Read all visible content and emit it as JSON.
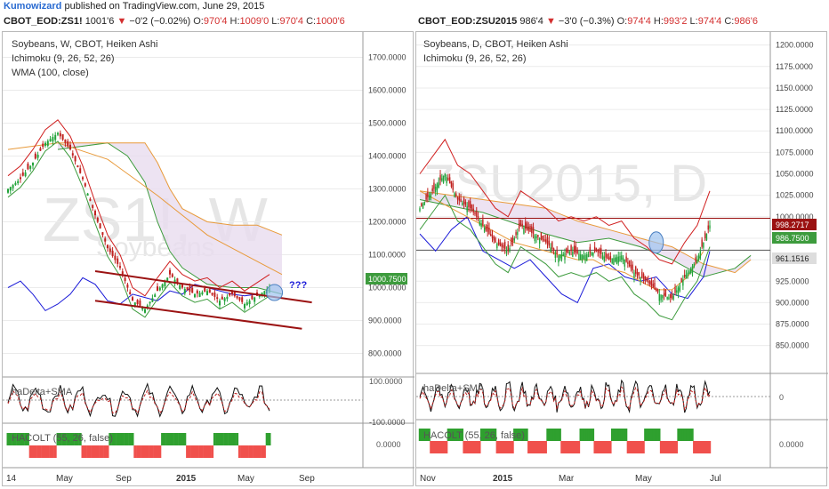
{
  "header": {
    "author": "Kumowizard",
    "published_text": "published on TradingView.com, June 29, 2015"
  },
  "colors": {
    "bull": "#22a33a",
    "bear": "#c0211f",
    "kumo_fill": "#e9dcef",
    "tenkan": "#d01f1f",
    "kijun": "#1a1ad8",
    "span_a": "#3d9b3d",
    "span_b": "#e89a3a",
    "wma": "#e89a3a",
    "trend": "#9b1212",
    "grid": "#ebebeb",
    "hist_green": "#2fa02f",
    "hist_red": "#f0504c"
  },
  "charts": [
    {
      "quote": {
        "symbol": "CBOT_EOD:ZS1!",
        "last": "1001'6",
        "change": "−0'2 (−0.02%)",
        "o_label": "O:",
        "o": "970'4",
        "h_label": "H:",
        "h": "1009'0",
        "l_label": "L:",
        "l": "970'4",
        "c_label": "C:",
        "c": "1000'6"
      },
      "legend": [
        "Soybeans, W, CBOT, Heiken Ashi",
        "Ichimoku (9, 26, 52, 26)",
        "WMA (100, close)"
      ],
      "watermark": "ZS1!, W",
      "watermark_sub": "Soybeans",
      "annotation": "???",
      "price_box": "1000.7500",
      "osc_label": "haDelta+SMA",
      "hist_label": "HACOLT (55, 26, false)",
      "osc_ticks": [
        "100.0000",
        "-100.0000"
      ],
      "hist_tick": "0.0000",
      "x_labels": [
        "14",
        "May",
        "Sep",
        "2015",
        "May",
        "Sep"
      ]
    },
    {
      "quote": {
        "symbol": "CBOT_EOD:ZSU2015",
        "last": "986'4",
        "change": "−3'0 (−0.3%)",
        "o_label": "O:",
        "o": "974'4",
        "h_label": "H:",
        "h": "993'2",
        "l_label": "L:",
        "l": "974'4",
        "c_label": "C:",
        "c": "986'6"
      },
      "legend": [
        "Soybeans, D, CBOT, Heiken Ashi",
        "Ichimoku (9, 26, 52, 26)"
      ],
      "watermark": "ZSU2015, D",
      "price_boxes": [
        "998.2717",
        "986.7500",
        "961.1516"
      ],
      "osc_label": "haDelta+SMA",
      "hist_label": "HACOLT (55, 26, false)",
      "osc_tick": "0",
      "hist_tick": "0.0000",
      "x_labels": [
        "Nov",
        "2015",
        "Mar",
        "May",
        "Jul"
      ]
    }
  ],
  "chart_data": [
    {
      "type": "candlestick",
      "title": "Soybeans, W, CBOT, Heiken Ashi",
      "ylim": [
        750,
        1750
      ],
      "y_ticks": [
        800,
        900,
        1000,
        1100,
        1200,
        1300,
        1400,
        1500,
        1600,
        1700
      ],
      "x_ticks": [
        "14",
        "May",
        "Sep",
        "2015",
        "May",
        "Sep"
      ],
      "close_path": [
        [
          0,
          1300
        ],
        [
          5,
          1330
        ],
        [
          10,
          1380
        ],
        [
          15,
          1440
        ],
        [
          20,
          1470
        ],
        [
          25,
          1420
        ],
        [
          30,
          1330
        ],
        [
          35,
          1220
        ],
        [
          40,
          1120
        ],
        [
          45,
          1060
        ],
        [
          50,
          960
        ],
        [
          55,
          935
        ],
        [
          60,
          990
        ],
        [
          65,
          1040
        ],
        [
          70,
          1000
        ],
        [
          75,
          980
        ],
        [
          80,
          990
        ],
        [
          85,
          960
        ],
        [
          90,
          980
        ],
        [
          95,
          950
        ],
        [
          100,
          975
        ],
        [
          105,
          1000
        ]
      ],
      "kijun_path": [
        [
          0,
          1000
        ],
        [
          5,
          1020
        ],
        [
          10,
          980
        ],
        [
          15,
          930
        ],
        [
          20,
          950
        ],
        [
          25,
          980
        ],
        [
          30,
          1030
        ],
        [
          35,
          1010
        ],
        [
          40,
          960
        ],
        [
          45,
          950
        ],
        [
          50,
          980
        ],
        [
          55,
          970
        ],
        [
          60,
          960
        ],
        [
          65,
          990
        ],
        [
          70,
          980
        ],
        [
          75,
          1010
        ],
        [
          80,
          1000
        ],
        [
          85,
          990
        ],
        [
          90,
          980
        ],
        [
          95,
          975
        ],
        [
          100,
          980
        ]
      ],
      "wma_path": [
        [
          0,
          1420
        ],
        [
          20,
          1440
        ],
        [
          40,
          1390
        ],
        [
          60,
          1280
        ],
        [
          80,
          1160
        ],
        [
          100,
          1080
        ],
        [
          110,
          1040
        ]
      ],
      "span_b_path": [
        [
          20,
          1440
        ],
        [
          50,
          1440
        ],
        [
          55,
          1440
        ],
        [
          60,
          1380
        ],
        [
          65,
          1300
        ],
        [
          70,
          1240
        ],
        [
          80,
          1200
        ],
        [
          90,
          1190
        ],
        [
          100,
          1190
        ],
        [
          110,
          1160
        ]
      ],
      "span_a_path": [
        [
          20,
          1420
        ],
        [
          40,
          1440
        ],
        [
          48,
          1400
        ],
        [
          55,
          1320
        ],
        [
          60,
          1200
        ],
        [
          65,
          1110
        ],
        [
          70,
          1060
        ],
        [
          80,
          1010
        ],
        [
          90,
          1000
        ],
        [
          100,
          1000
        ],
        [
          110,
          980
        ]
      ],
      "channel_upper": [
        [
          35,
          1050
        ],
        [
          52,
          985
        ]
      ],
      "channel_lower": [
        [
          35,
          960
        ],
        [
          80,
          880
        ]
      ],
      "last_price": 1000.75
    },
    {
      "type": "candlestick",
      "title": "Soybeans, D, CBOT, Heiken Ashi",
      "ylim": [
        830,
        1210
      ],
      "y_ticks": [
        850,
        875,
        900,
        925,
        950,
        975,
        1000,
        1025,
        1050,
        1075,
        1100,
        1125,
        1150,
        1175,
        1200
      ],
      "x_ticks": [
        "Nov",
        "2015",
        "Mar",
        "May",
        "Jul"
      ],
      "close_path": [
        [
          0,
          1010
        ],
        [
          8,
          1030
        ],
        [
          16,
          1050
        ],
        [
          24,
          1020
        ],
        [
          32,
          1010
        ],
        [
          40,
          990
        ],
        [
          48,
          970
        ],
        [
          56,
          960
        ],
        [
          64,
          990
        ],
        [
          72,
          980
        ],
        [
          80,
          970
        ],
        [
          88,
          955
        ],
        [
          96,
          960
        ],
        [
          104,
          955
        ],
        [
          112,
          960
        ],
        [
          120,
          950
        ],
        [
          128,
          955
        ],
        [
          136,
          935
        ],
        [
          144,
          925
        ],
        [
          152,
          910
        ],
        [
          160,
          905
        ],
        [
          168,
          930
        ],
        [
          176,
          950
        ],
        [
          184,
          990
        ]
      ],
      "kijun_path": [
        [
          0,
          1030
        ],
        [
          10,
          1020
        ],
        [
          20,
          1010
        ],
        [
          30,
          1000
        ],
        [
          40,
          990
        ],
        [
          50,
          980
        ],
        [
          60,
          970
        ],
        [
          70,
          965
        ],
        [
          80,
          960
        ],
        [
          90,
          955
        ],
        [
          100,
          950
        ],
        [
          110,
          950
        ],
        [
          120,
          940
        ],
        [
          130,
          935
        ],
        [
          140,
          925
        ],
        [
          150,
          915
        ],
        [
          160,
          915
        ],
        [
          170,
          930
        ],
        [
          180,
          960
        ]
      ],
      "tenkan_path": [
        [
          0,
          980
        ],
        [
          10,
          960
        ],
        [
          20,
          985
        ],
        [
          30,
          1000
        ],
        [
          40,
          960
        ],
        [
          50,
          950
        ],
        [
          60,
          940
        ],
        [
          70,
          950
        ],
        [
          80,
          930
        ],
        [
          90,
          910
        ],
        [
          100,
          900
        ],
        [
          110,
          940
        ],
        [
          120,
          945
        ],
        [
          130,
          930
        ],
        [
          140,
          925
        ],
        [
          150,
          930
        ],
        [
          160,
          910
        ],
        [
          170,
          905
        ],
        [
          180,
          930
        ],
        [
          184,
          960
        ]
      ],
      "span_a_path": [
        [
          0,
          1020
        ],
        [
          40,
          1005
        ],
        [
          80,
          980
        ],
        [
          100,
          970
        ],
        [
          120,
          975
        ],
        [
          140,
          965
        ],
        [
          160,
          950
        ],
        [
          180,
          930
        ],
        [
          200,
          940
        ],
        [
          210,
          955
        ]
      ],
      "span_b_path": [
        [
          0,
          1030
        ],
        [
          40,
          1020
        ],
        [
          80,
          1010
        ],
        [
          100,
          995
        ],
        [
          120,
          985
        ],
        [
          140,
          975
        ],
        [
          160,
          965
        ],
        [
          180,
          945
        ],
        [
          200,
          935
        ],
        [
          210,
          950
        ]
      ],
      "hlines": [
        998.2717,
        961.1516
      ],
      "last_price": 986.75
    }
  ]
}
